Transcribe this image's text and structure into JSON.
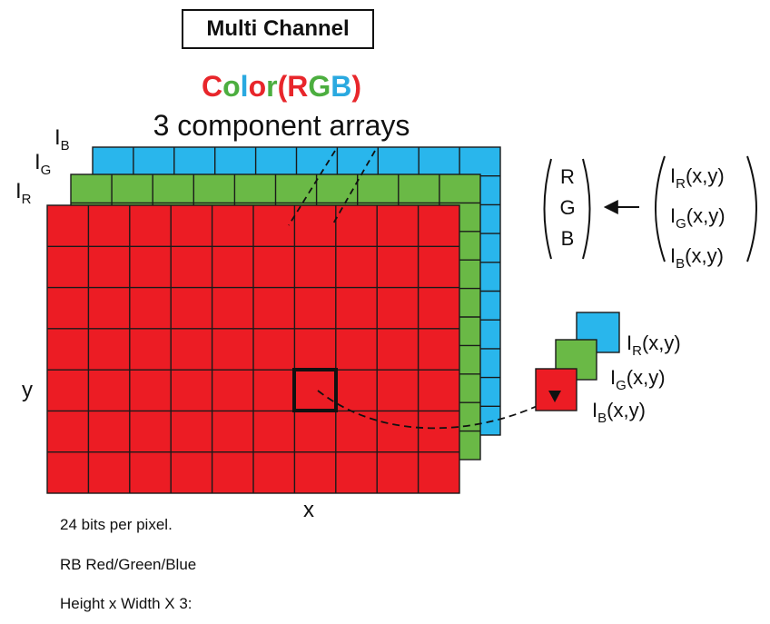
{
  "title": "Multi Channel",
  "heading": {
    "parts": [
      {
        "text": "C",
        "color": "#e8262b"
      },
      {
        "text": "o",
        "color": "#4cae3f"
      },
      {
        "text": "l",
        "color": "#2aa9e0"
      },
      {
        "text": "o",
        "color": "#e8262b"
      },
      {
        "text": "r",
        "color": "#4cae3f"
      },
      {
        "text": "(",
        "color": "#e8262b"
      },
      {
        "text": "R",
        "color": "#e8262b"
      },
      {
        "text": "G",
        "color": "#4cae3f"
      },
      {
        "text": "B",
        "color": "#2aa9e0"
      },
      {
        "text": ")",
        "color": "#e8262b"
      }
    ]
  },
  "subheading": "3 component arrays",
  "layer_labels": {
    "blue": {
      "base": "I",
      "sub": "B"
    },
    "green": {
      "base": "I",
      "sub": "G"
    },
    "red": {
      "base": "I",
      "sub": "R"
    }
  },
  "axis": {
    "x": "x",
    "y": "y"
  },
  "rgb_vector": [
    "R",
    "G",
    "B"
  ],
  "intensity_vector": [
    {
      "base": "I",
      "sub": "R",
      "arg": "(x,y)"
    },
    {
      "base": "I",
      "sub": "G",
      "arg": "(x,y)"
    },
    {
      "base": "I",
      "sub": "B",
      "arg": "(x,y)"
    }
  ],
  "pixel_stack_labels": [
    {
      "base": "I",
      "sub": "R",
      "arg": "(x,y)"
    },
    {
      "base": "I",
      "sub": "G",
      "arg": "(x,y)"
    },
    {
      "base": "I",
      "sub": "B",
      "arg": "(x,y)"
    }
  ],
  "notes": [
    "24 bits per pixel.",
    "RB Red/Green/Blue",
    "Height x Width X 3:"
  ],
  "colors": {
    "red": "#ec1c24",
    "green": "#6ab946",
    "blue": "#29b6ec",
    "grid": "#1a1a1a"
  }
}
